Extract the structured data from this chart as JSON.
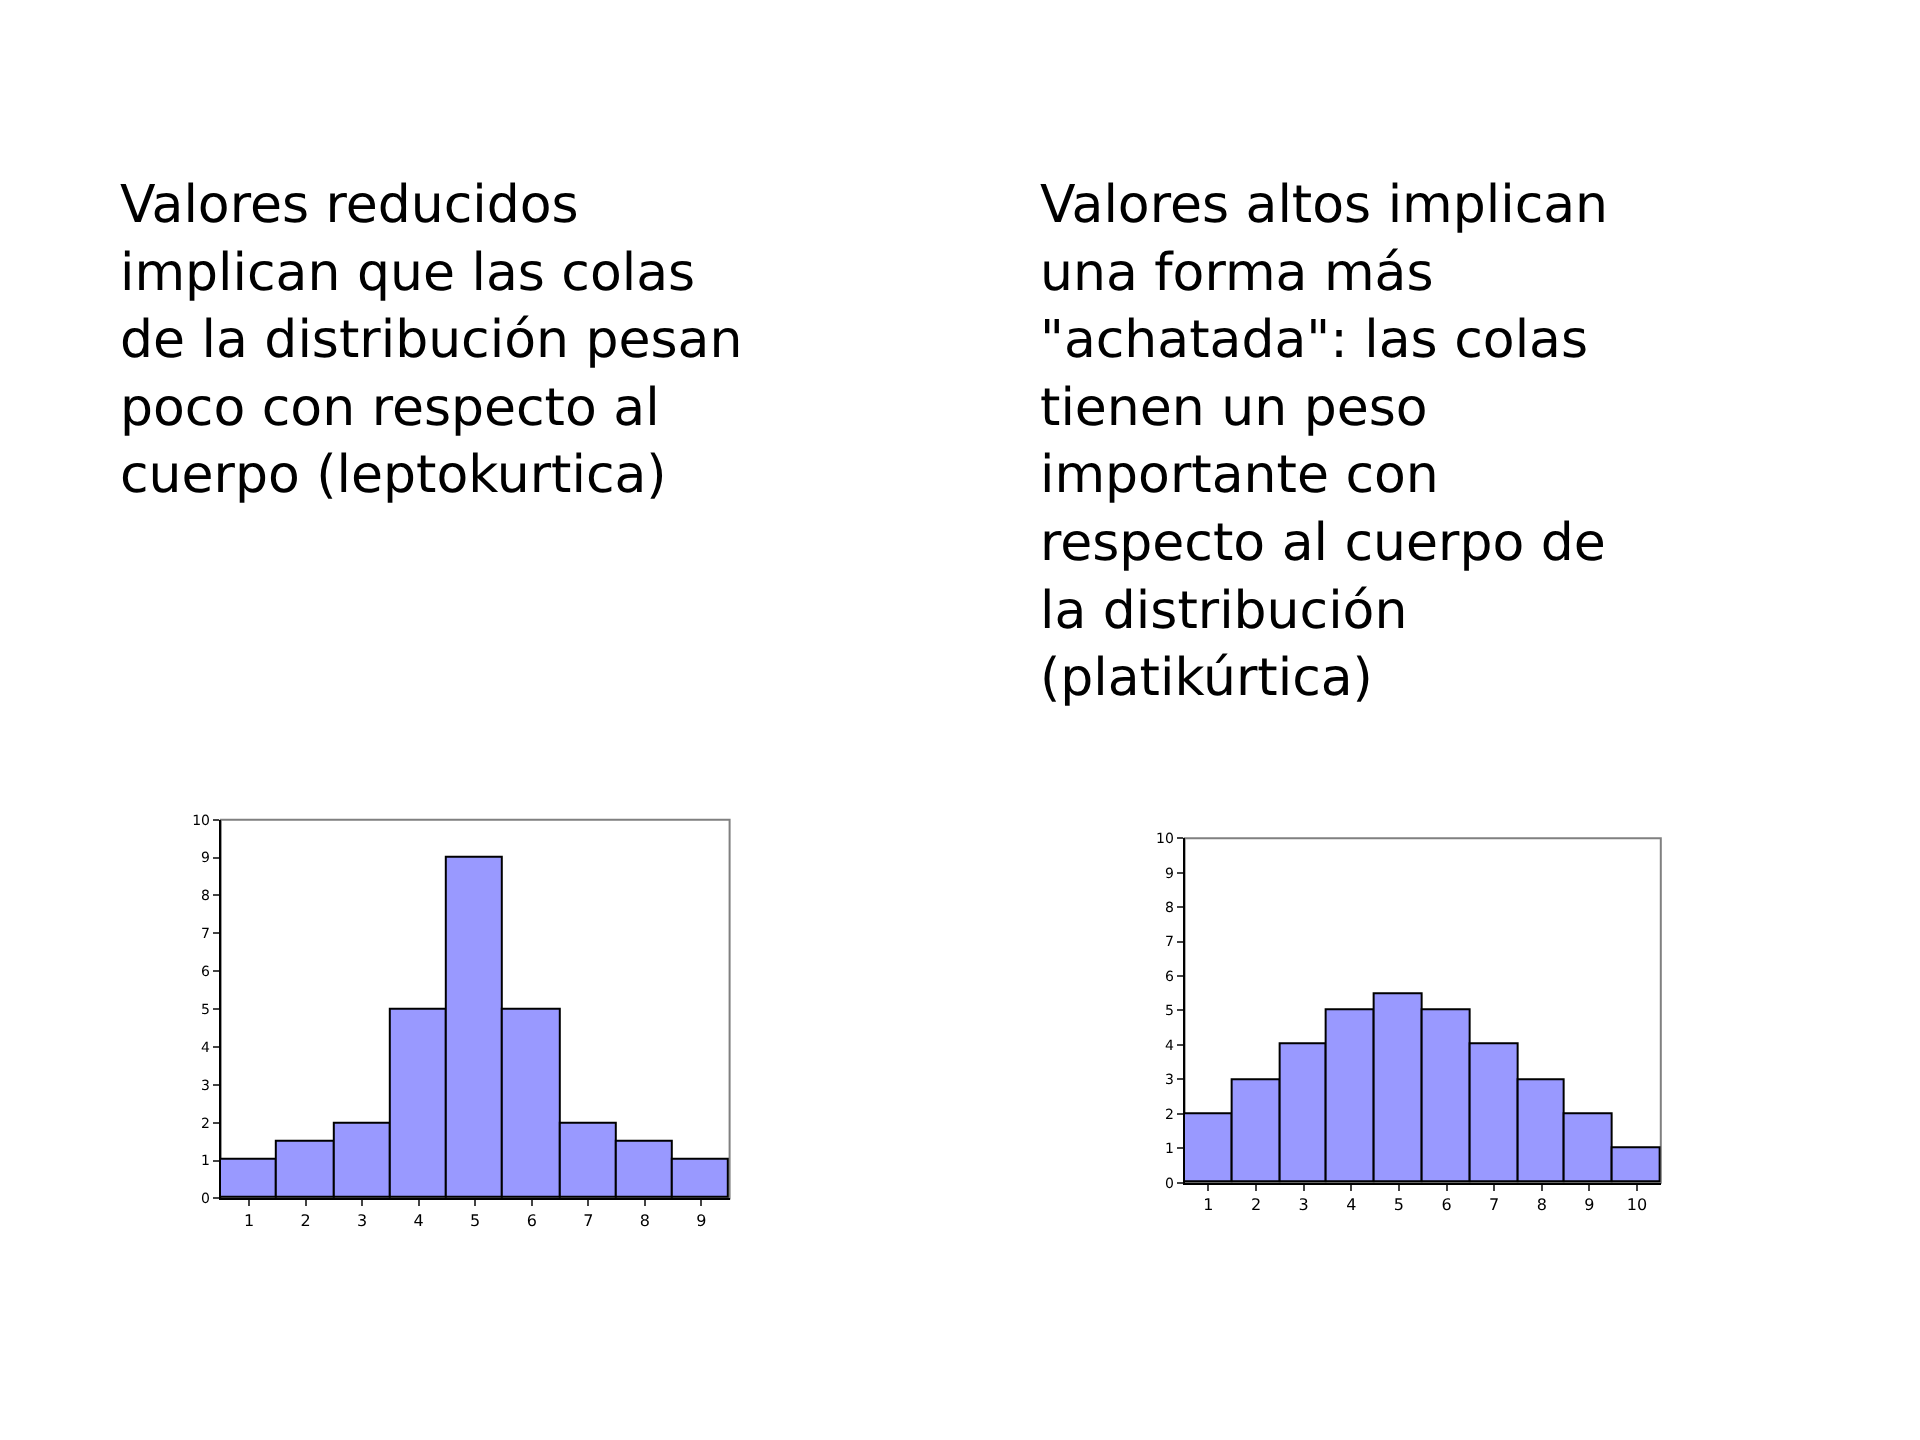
{
  "chart_data": [
    {
      "type": "bar",
      "title": "Valores reducidos implican que las colas de la distribución pesan poco con respecto al cuerpo (leptokurtica)",
      "categories": [
        "1",
        "2",
        "3",
        "4",
        "5",
        "6",
        "7",
        "8",
        "9"
      ],
      "values": [
        1,
        1.5,
        2,
        5,
        9,
        5,
        2,
        1.5,
        1
      ],
      "color": "#9999ff",
      "ylim": [
        0,
        10
      ],
      "yticks": [
        0,
        1,
        2,
        3,
        4,
        5,
        6,
        7,
        8,
        9,
        10
      ],
      "grid": false
    },
    {
      "type": "bar",
      "title": "Valores altos implican una forma más \"achatada\": las colas tienen un peso importante con respecto al cuerpo de la distribución (platikúrtica)",
      "categories": [
        "1",
        "2",
        "3",
        "4",
        "5",
        "6",
        "7",
        "8",
        "9",
        "10"
      ],
      "values": [
        2,
        3,
        4,
        5,
        5.5,
        5,
        4,
        3,
        2,
        1
      ],
      "color": "#9999ff",
      "ylim": [
        0,
        10
      ],
      "yticks": [
        0,
        1,
        2,
        3,
        4,
        5,
        6,
        7,
        8,
        9,
        10
      ],
      "grid": false
    }
  ]
}
